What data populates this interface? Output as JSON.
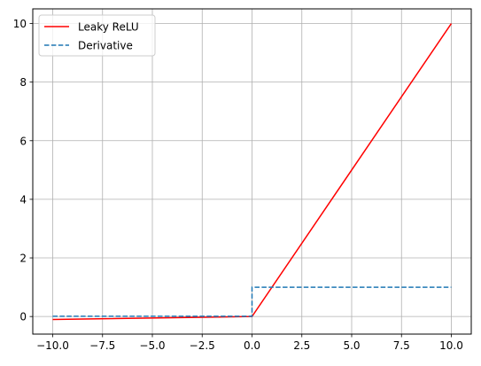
{
  "chart_data": {
    "type": "line",
    "title": "",
    "xlabel": "",
    "ylabel": "",
    "xlim": [
      -11,
      11
    ],
    "ylim": [
      -0.6,
      10.5
    ],
    "grid": true,
    "legend_position": "top-left",
    "x_ticks": [
      -10.0,
      -7.5,
      -5.0,
      -2.5,
      0.0,
      2.5,
      5.0,
      7.5,
      10.0
    ],
    "x_tick_labels": [
      "−10.0",
      "−7.5",
      "−5.0",
      "−2.5",
      "0.0",
      "2.5",
      "5.0",
      "7.5",
      "10.0"
    ],
    "y_ticks": [
      0,
      2,
      4,
      6,
      8,
      10
    ],
    "y_tick_labels": [
      "0",
      "2",
      "4",
      "6",
      "8",
      "10"
    ],
    "series": [
      {
        "name": "Leaky ReLU",
        "color": "#ff0000",
        "style": "solid",
        "x": [
          -10,
          0,
          10
        ],
        "y": [
          -0.1,
          0,
          10
        ]
      },
      {
        "name": "Derivative",
        "color": "#1f77b4",
        "style": "dashed",
        "x": [
          -10,
          0,
          0,
          10
        ],
        "y": [
          0.01,
          0.01,
          1,
          1
        ]
      }
    ]
  }
}
